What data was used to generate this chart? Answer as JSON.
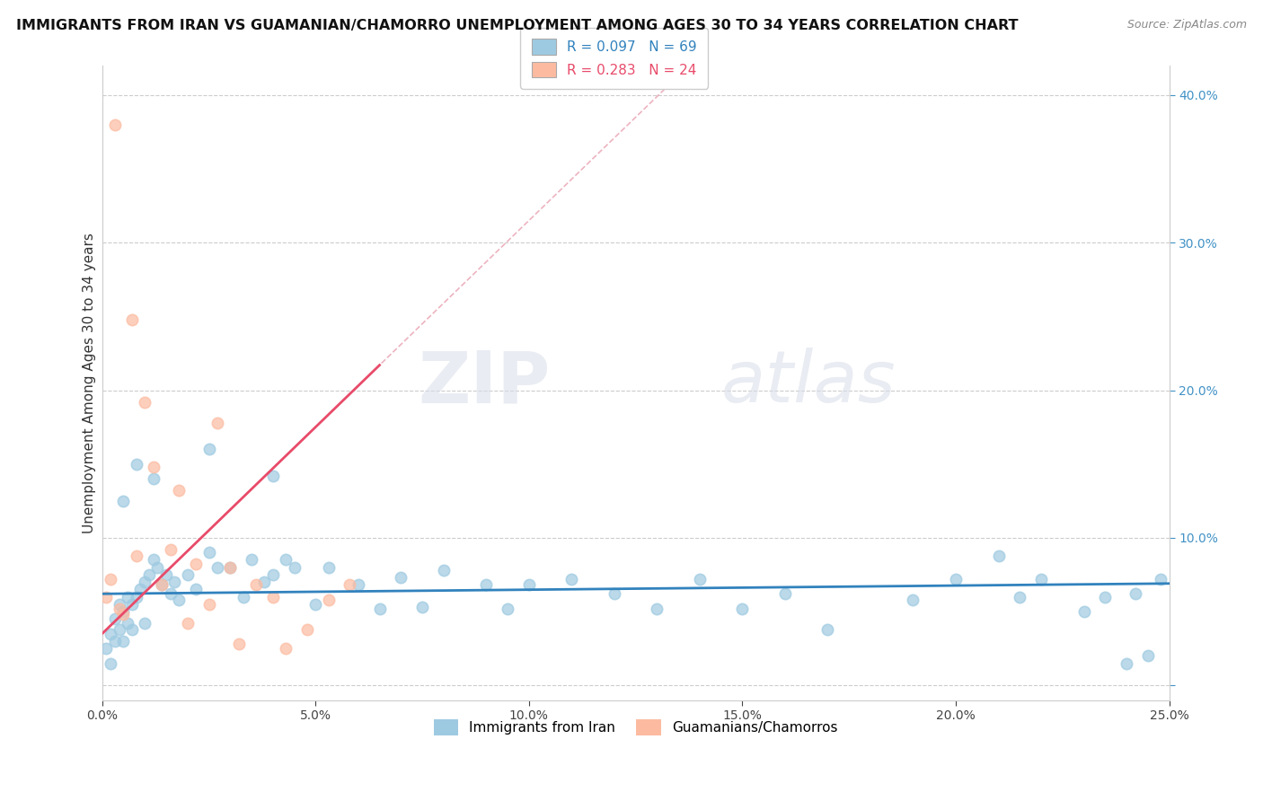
{
  "title": "IMMIGRANTS FROM IRAN VS GUAMANIAN/CHAMORRO UNEMPLOYMENT AMONG AGES 30 TO 34 YEARS CORRELATION CHART",
  "source": "Source: ZipAtlas.com",
  "ylabel": "Unemployment Among Ages 30 to 34 years",
  "xlim": [
    0.0,
    0.25
  ],
  "ylim": [
    -0.01,
    0.42
  ],
  "xticks": [
    0.0,
    0.05,
    0.1,
    0.15,
    0.2,
    0.25
  ],
  "xtick_labels": [
    "0.0%",
    "5.0%",
    "10.0%",
    "15.0%",
    "20.0%",
    "25.0%"
  ],
  "yticks": [
    0.0,
    0.1,
    0.2,
    0.3,
    0.4
  ],
  "ytick_labels": [
    "",
    "10.0%",
    "20.0%",
    "30.0%",
    "40.0%"
  ],
  "legend1_label": "R = 0.097   N = 69",
  "legend2_label": "R = 0.283   N = 24",
  "legend1_color": "#9ecae1",
  "legend2_color": "#fcbba1",
  "series1_name": "Immigrants from Iran",
  "series2_name": "Guamanians/Chamorros",
  "watermark_zip": "ZIP",
  "watermark_atlas": "atlas",
  "blue_dot_color": "#9ecae1",
  "pink_dot_color": "#fcbba1",
  "blue_line_color": "#3182bd",
  "pink_line_color": "#e84b6a",
  "dash_line_color": "#e8a0b0",
  "yticklabel_color": "#4292c6",
  "background_color": "#ffffff",
  "scatter1_x": [
    0.001,
    0.002,
    0.002,
    0.003,
    0.003,
    0.004,
    0.004,
    0.005,
    0.005,
    0.006,
    0.006,
    0.007,
    0.007,
    0.008,
    0.009,
    0.01,
    0.01,
    0.011,
    0.012,
    0.013,
    0.014,
    0.015,
    0.016,
    0.017,
    0.018,
    0.02,
    0.022,
    0.025,
    0.027,
    0.03,
    0.033,
    0.035,
    0.038,
    0.04,
    0.043,
    0.045,
    0.05,
    0.053,
    0.06,
    0.065,
    0.07,
    0.075,
    0.08,
    0.09,
    0.095,
    0.1,
    0.11,
    0.12,
    0.13,
    0.14,
    0.15,
    0.16,
    0.17,
    0.19,
    0.2,
    0.21,
    0.215,
    0.22,
    0.23,
    0.235,
    0.24,
    0.242,
    0.245,
    0.248,
    0.005,
    0.008,
    0.012,
    0.025,
    0.04
  ],
  "scatter1_y": [
    0.025,
    0.035,
    0.015,
    0.045,
    0.03,
    0.055,
    0.038,
    0.05,
    0.03,
    0.06,
    0.042,
    0.055,
    0.038,
    0.06,
    0.065,
    0.07,
    0.042,
    0.075,
    0.085,
    0.08,
    0.068,
    0.075,
    0.062,
    0.07,
    0.058,
    0.075,
    0.065,
    0.09,
    0.08,
    0.08,
    0.06,
    0.085,
    0.07,
    0.075,
    0.085,
    0.08,
    0.055,
    0.08,
    0.068,
    0.052,
    0.073,
    0.053,
    0.078,
    0.068,
    0.052,
    0.068,
    0.072,
    0.062,
    0.052,
    0.072,
    0.052,
    0.062,
    0.038,
    0.058,
    0.072,
    0.088,
    0.06,
    0.072,
    0.05,
    0.06,
    0.015,
    0.062,
    0.02,
    0.072,
    0.125,
    0.15,
    0.14,
    0.16,
    0.142
  ],
  "scatter2_x": [
    0.001,
    0.002,
    0.003,
    0.004,
    0.005,
    0.007,
    0.008,
    0.01,
    0.012,
    0.014,
    0.016,
    0.018,
    0.02,
    0.022,
    0.025,
    0.027,
    0.03,
    0.032,
    0.036,
    0.04,
    0.043,
    0.048,
    0.053,
    0.058
  ],
  "scatter2_y": [
    0.06,
    0.072,
    0.38,
    0.052,
    0.048,
    0.248,
    0.088,
    0.192,
    0.148,
    0.068,
    0.092,
    0.132,
    0.042,
    0.082,
    0.055,
    0.178,
    0.08,
    0.028,
    0.068,
    0.06,
    0.025,
    0.038,
    0.058,
    0.068
  ],
  "title_fontsize": 11.5,
  "axis_label_fontsize": 11,
  "tick_fontsize": 10,
  "legend_fontsize": 11,
  "blue_intercept": 0.062,
  "blue_slope": 0.028,
  "pink_intercept": 0.035,
  "pink_slope": 2.8
}
